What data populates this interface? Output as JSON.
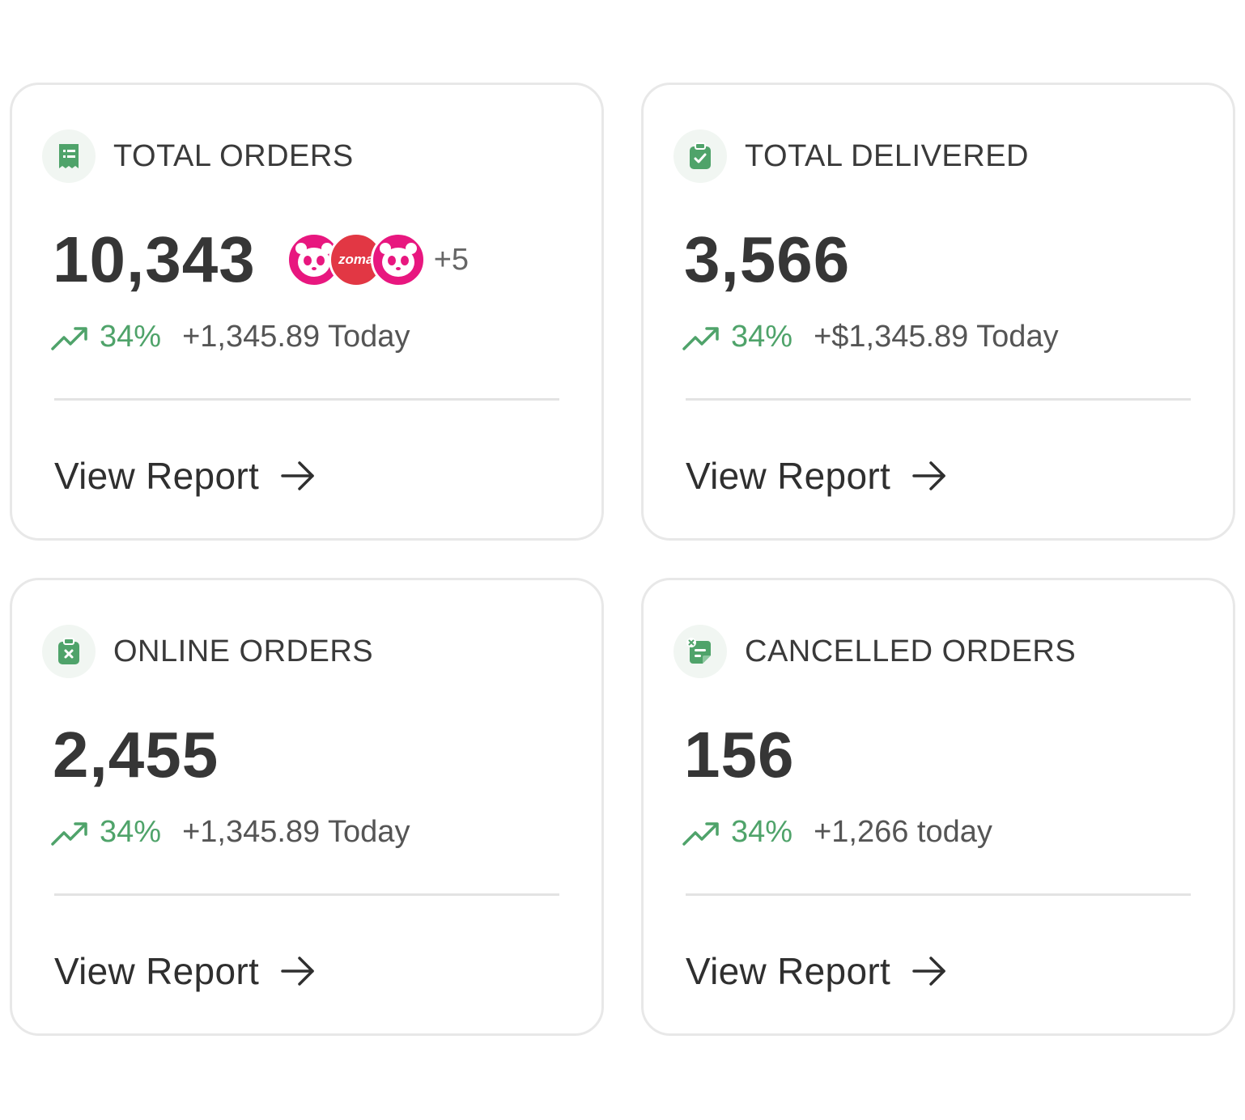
{
  "colors": {
    "accent": "#4fa36a",
    "foodpanda": "#e8177f",
    "zomato": "#e23744"
  },
  "cards": [
    {
      "title": "TOTAL ORDERS",
      "icon": "receipt-icon",
      "value": "10,343",
      "logos": [
        "foodpanda-logo",
        "zomato-logo",
        "foodpanda-logo"
      ],
      "logo_text": "zoma",
      "more": "+5",
      "trend_icon": "trending-up-icon",
      "pct": "34%",
      "delta": "+1,345.89 Today",
      "report_label": "View Report"
    },
    {
      "title": "TOTAL DELIVERED",
      "icon": "clipboard-check-icon",
      "value": "3,566",
      "trend_icon": "trending-up-icon",
      "pct": "34%",
      "delta": "+$1,345.89 Today",
      "report_label": "View Report"
    },
    {
      "title": "ONLINE ORDERS",
      "icon": "clipboard-x-icon",
      "value": "2,455",
      "trend_icon": "trending-up-icon",
      "pct": "34%",
      "delta": "+1,345.89 Today",
      "report_label": "View Report"
    },
    {
      "title": "CANCELLED ORDERS",
      "icon": "cancelled-note-icon",
      "value": "156",
      "trend_icon": "trending-up-icon",
      "pct": "34%",
      "delta": "+1,266 today",
      "report_label": "View Report"
    }
  ]
}
